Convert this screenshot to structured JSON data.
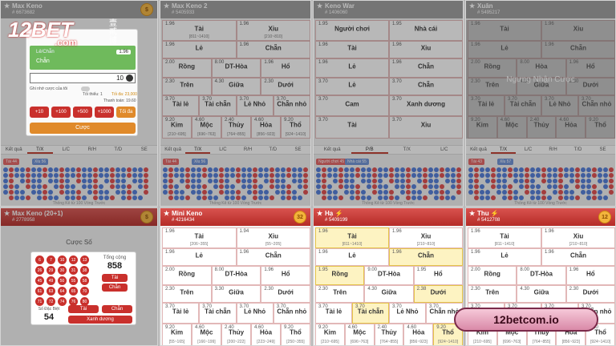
{
  "logo": {
    "brand": "12BET",
    "tld": ".com",
    "cn": "壹貳博"
  },
  "watermark": "12betcom.io",
  "footer": "Thống Kê từ 100 Vòng Trước",
  "bet": {
    "market": "Lẻ/Chẵn",
    "pick": "Chẵn",
    "odds": "1.96",
    "stake": "10",
    "remember": "Ghi nhớ cược của tôi",
    "min": "Tối thiểu: 1",
    "max": "Tối đa: 23,000",
    "payout": "Thanh toán: 19.60",
    "chips": [
      "+10",
      "+100",
      "+500",
      "+1000",
      "Tối đa"
    ],
    "submit": "Cược"
  },
  "numbers": {
    "heading": "Cược Số",
    "balls": [
      "6",
      "7",
      "10",
      "12",
      "13",
      "26",
      "29",
      "30",
      "31",
      "38",
      "45",
      "49",
      "50",
      "55",
      "58",
      "61",
      "63",
      "64",
      "65",
      "70",
      "71",
      "72",
      "74",
      "76",
      "80"
    ],
    "total_label": "Tổng cộng",
    "total": "858",
    "total_tags": [
      "Tài",
      "Chẵn"
    ],
    "special_label": "Số Đặc Biệt",
    "special": "54",
    "special_tags": [
      "Tài",
      "Chẵn"
    ],
    "color_tag": "Xanh dương"
  },
  "panels": [
    {
      "title": "Max Keno",
      "round": "# 6673682",
      "badge": "$",
      "tabs": [
        "Kết quả",
        "T/X",
        "L/C",
        "R/H",
        "T/D",
        "SE"
      ],
      "active": 1,
      "road": [
        "Tài 44",
        "Xỉu 56"
      ],
      "rows": []
    },
    {
      "title": "Max Keno 2",
      "round": "# 5405933",
      "tabs": [
        "Kết quả",
        "T/X",
        "L/C",
        "R/H",
        "T/D",
        "SE"
      ],
      "active": 1,
      "road": [
        "Tài 44",
        "Xỉu 56"
      ],
      "rows": [
        [
          {
            "odds": "1.96",
            "label": "Tài",
            "range": "[811~1410]"
          },
          {
            "odds": "1.96",
            "label": "Xỉu",
            "range": "[210~810]"
          }
        ],
        [
          {
            "odds": "1.96",
            "label": "Lẻ"
          },
          {
            "odds": "1.96",
            "label": "Chẵn"
          }
        ],
        [
          {
            "odds": "2.00",
            "label": "Rồng"
          },
          {
            "odds": "8.00",
            "label": "DT-Hòa"
          },
          {
            "odds": "1.96",
            "label": "Hổ"
          }
        ],
        [
          {
            "odds": "2.30",
            "label": "Trên"
          },
          {
            "odds": "4.30",
            "label": "Giữa"
          },
          {
            "odds": "2.30",
            "label": "Dưới"
          }
        ],
        [
          {
            "odds": "3.70",
            "label": "Tài lẻ"
          },
          {
            "odds": "3.70",
            "label": "Tài chẵn"
          },
          {
            "odds": "3.70",
            "label": "Lẻ Nhỏ"
          },
          {
            "odds": "3.70",
            "label": "Chẵn nhỏ"
          }
        ],
        [
          {
            "odds": "9.20",
            "label": "Kim",
            "range": "[210~695]"
          },
          {
            "odds": "4.60",
            "label": "Mộc",
            "range": "[696~763]"
          },
          {
            "odds": "2.40",
            "label": "Thủy",
            "range": "[764~855]"
          },
          {
            "odds": "4.60",
            "label": "Hỏa",
            "range": "[856~923]"
          },
          {
            "odds": "9.20",
            "label": "Thổ",
            "range": "[924~1410]"
          }
        ]
      ]
    },
    {
      "title": "Keno War",
      "round": "# 1406060",
      "tabs": [
        "Kết quả",
        "P/B",
        "T/X",
        "L/C"
      ],
      "active": 1,
      "road": [
        "Người chơi 45",
        "Nhà cái 55"
      ],
      "rows": [
        [
          {
            "odds": "1.95",
            "label": "Người chơi"
          },
          {
            "odds": "1.95",
            "label": "Nhà cái"
          }
        ],
        [
          {
            "odds": "1.96",
            "label": "Tài"
          },
          {
            "odds": "1.96",
            "label": "Xỉu"
          }
        ],
        [
          {
            "odds": "1.96",
            "label": "Lẻ"
          },
          {
            "odds": "1.96",
            "label": "Chẵn"
          }
        ],
        [
          {
            "odds": "3.70",
            "label": "Lẻ"
          },
          {
            "odds": "3.70",
            "label": "Chẵn"
          }
        ],
        [
          {
            "odds": "3.70",
            "label": "Cam"
          },
          {
            "odds": "3.70",
            "label": "Xanh dương"
          }
        ],
        [
          {
            "odds": "3.70",
            "label": "Tài"
          },
          {
            "odds": "3.70",
            "label": "Xỉu"
          }
        ]
      ]
    },
    {
      "title": "Xuân",
      "round": "# 5495217",
      "suspended": "Ngưng Nhận Cược",
      "tabs": [
        "Kết quả",
        "T/X",
        "L/C",
        "R/H",
        "T/D",
        "SE"
      ],
      "active": 1,
      "road": [
        "Tài 43",
        "Xỉu 57"
      ],
      "rows": [
        [
          {
            "odds": "1.96",
            "label": "Tài"
          },
          {
            "odds": "1.96",
            "label": "Xỉu"
          }
        ],
        [
          {
            "odds": "1.96",
            "label": "Lẻ"
          },
          {
            "odds": "1.96",
            "label": "Chẵn"
          }
        ],
        [
          {
            "odds": "2.00",
            "label": "Rồng"
          },
          {
            "odds": "8.00",
            "label": "Hòa"
          },
          {
            "odds": "1.96",
            "label": "Hổ"
          }
        ],
        [
          {
            "odds": "2.30",
            "label": "Trên"
          },
          {
            "odds": "4.30",
            "label": "Giữa"
          },
          {
            "odds": "2.30",
            "label": "Dưới"
          }
        ],
        [
          {
            "odds": "3.70",
            "label": "Tài lẻ"
          },
          {
            "odds": "3.70",
            "label": "Tài chẵn"
          },
          {
            "odds": "3.70",
            "label": "Lẻ Nhỏ"
          },
          {
            "odds": "3.70",
            "label": "Chẵn nhỏ"
          }
        ],
        [
          {
            "odds": "9.20",
            "label": "Kim"
          },
          {
            "odds": "4.60",
            "label": "Mộc"
          },
          {
            "odds": "2.40",
            "label": "Thủy"
          },
          {
            "odds": "4.60",
            "label": "Hỏa"
          },
          {
            "odds": "9.20",
            "label": "Thổ"
          }
        ]
      ]
    },
    {
      "title": "Max Keno (20+1)",
      "round": "# 2778958",
      "badge": "$",
      "rows": []
    },
    {
      "title": "Mini Keno",
      "round": "# 4216434",
      "badge": "32",
      "rows": [
        [
          {
            "odds": "1.96",
            "label": "Tài",
            "range": "[206~355]"
          },
          {
            "odds": "1.94",
            "label": "Xỉu",
            "range": "[55~205]"
          }
        ],
        [
          {
            "odds": "1.96",
            "label": "Lẻ"
          },
          {
            "odds": "1.96",
            "label": "Chẵn"
          }
        ],
        [
          {
            "odds": "2.00",
            "label": "Rồng"
          },
          {
            "odds": "8.00",
            "label": "DT-Hòa"
          },
          {
            "odds": "1.96",
            "label": "Hổ"
          }
        ],
        [
          {
            "odds": "2.30",
            "label": "Trên"
          },
          {
            "odds": "3.30",
            "label": "Giữa"
          },
          {
            "odds": "2.30",
            "label": "Dưới"
          }
        ],
        [
          {
            "odds": "3.70",
            "label": "Tài lẻ"
          },
          {
            "odds": "3.70",
            "label": "Tài chẵn"
          },
          {
            "odds": "3.70",
            "label": "Lẻ Nhỏ"
          },
          {
            "odds": "3.70",
            "label": "Chẵn nhỏ"
          }
        ],
        [
          {
            "odds": "9.20",
            "label": "Kim",
            "range": "[55~165]"
          },
          {
            "odds": "4.60",
            "label": "Mộc",
            "range": "[166~199]"
          },
          {
            "odds": "2.40",
            "label": "Thủy",
            "range": "[200~222]"
          },
          {
            "odds": "4.60",
            "label": "Hỏa",
            "range": "[223~249]"
          },
          {
            "odds": "9.20",
            "label": "Thổ",
            "range": "[250~355]"
          }
        ]
      ]
    },
    {
      "title": "Hạ ⚡",
      "round": "# 5409199",
      "rows": [
        [
          {
            "odds": "1.96",
            "label": "Tài",
            "range": "[811~1410]",
            "hl": true
          },
          {
            "odds": "1.96",
            "label": "Xỉu",
            "range": "[210~810]"
          }
        ],
        [
          {
            "odds": "1.96",
            "label": "Lẻ"
          },
          {
            "odds": "1.96",
            "label": "Chẵn",
            "hl": true
          }
        ],
        [
          {
            "odds": "1.95",
            "label": "Rồng",
            "hl": true
          },
          {
            "odds": "9.00",
            "label": "DT-Hòa"
          },
          {
            "odds": "1.95",
            "label": "Hổ"
          }
        ],
        [
          {
            "odds": "2.30",
            "label": "Trên"
          },
          {
            "odds": "4.30",
            "label": "Giữa"
          },
          {
            "odds": "2.38",
            "label": "Dưới",
            "hl": true
          }
        ],
        [
          {
            "odds": "3.70",
            "label": "Tài lẻ"
          },
          {
            "odds": "3.70",
            "label": "Tài chẵn",
            "hl": true
          },
          {
            "odds": "3.70",
            "label": "Lẻ Nhỏ"
          },
          {
            "odds": "3.70",
            "label": "Chẵn nhỏ"
          }
        ],
        [
          {
            "odds": "9.20",
            "label": "Kim",
            "range": "[210~695]"
          },
          {
            "odds": "4.60",
            "label": "Mộc",
            "range": "[696~763]"
          },
          {
            "odds": "2.40",
            "label": "Thủy",
            "range": "[764~855]"
          },
          {
            "odds": "4.60",
            "label": "Hỏa",
            "range": "[856~923]"
          },
          {
            "odds": "9.20",
            "label": "Thổ",
            "range": "[924~1410]",
            "hl": true
          }
        ]
      ]
    },
    {
      "title": "Thu ⚡",
      "round": "# 5412708",
      "badge": "12",
      "rows": [
        [
          {
            "odds": "1.96",
            "label": "Tài",
            "range": "[811~1410]"
          },
          {
            "odds": "1.96",
            "label": "Xỉu",
            "range": "[210~810]"
          }
        ],
        [
          {
            "odds": "1.96",
            "label": "Lẻ"
          },
          {
            "odds": "1.96",
            "label": "Chẵn"
          }
        ],
        [
          {
            "odds": "2.00",
            "label": "Rồng"
          },
          {
            "odds": "8.00",
            "label": "DT-Hòa"
          },
          {
            "odds": "1.96",
            "label": "Hổ"
          }
        ],
        [
          {
            "odds": "2.30",
            "label": "Trên"
          },
          {
            "odds": "4.30",
            "label": "Giữa"
          },
          {
            "odds": "2.30",
            "label": "Dưới"
          }
        ],
        [
          {
            "odds": "3.70",
            "label": "Tài lẻ"
          },
          {
            "odds": "3.70",
            "label": "Tài chẵn"
          },
          {
            "odds": "3.70",
            "label": "Lẻ Nhỏ"
          },
          {
            "odds": "3.70",
            "label": "Chẵn nhỏ"
          }
        ],
        [
          {
            "odds": "9.20",
            "label": "Kim",
            "range": "[210~695]"
          },
          {
            "odds": "4.60",
            "label": "Mộc",
            "range": "[696~763]"
          },
          {
            "odds": "2.40",
            "label": "Thủy",
            "range": "[764~855]"
          },
          {
            "odds": "4.60",
            "label": "Hỏa",
            "range": "[856~923]"
          },
          {
            "odds": "9.20",
            "label": "Thổ",
            "range": "[924~1410]"
          }
        ]
      ]
    }
  ]
}
